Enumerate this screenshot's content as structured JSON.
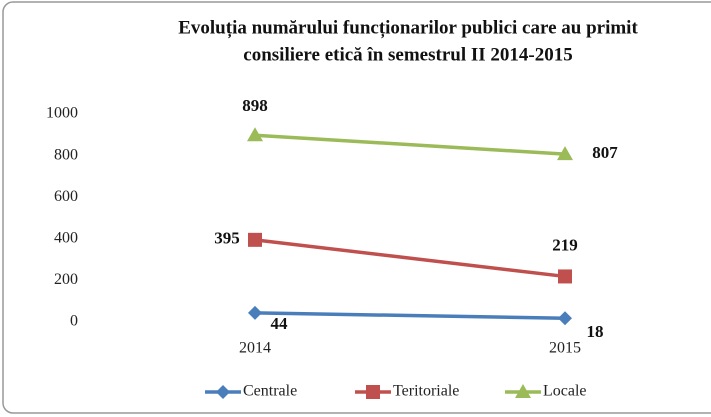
{
  "chart_data": {
    "type": "line",
    "title": [
      "Evoluția numărului funcționarilor publici care au primit",
      "consiliere etică în semestrul II 2014-2015"
    ],
    "categories": [
      "2014",
      "2015"
    ],
    "series": [
      {
        "name": "Centrale",
        "color": "#4a7ebb",
        "marker": "diamond",
        "values": [
          44,
          18
        ]
      },
      {
        "name": "Teritoriale",
        "color": "#c0504d",
        "marker": "square",
        "values": [
          395,
          219
        ]
      },
      {
        "name": "Locale",
        "color": "#9bbb59",
        "marker": "triangle",
        "values": [
          898,
          807
        ]
      }
    ],
    "ylim": [
      0,
      1000
    ],
    "yticks": [
      0,
      200,
      400,
      600,
      800,
      1000
    ],
    "grid": false,
    "legend": "bottom"
  }
}
